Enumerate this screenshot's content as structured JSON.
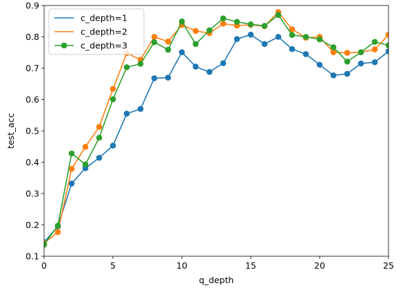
{
  "chart_data": {
    "type": "line",
    "title": "",
    "xlabel": "q_depth",
    "ylabel": "test_acc",
    "xlim": [
      0,
      25
    ],
    "ylim": [
      0.1,
      0.9
    ],
    "xticks": [
      0,
      5,
      10,
      15,
      20,
      25
    ],
    "yticks": [
      0.1,
      0.2,
      0.3,
      0.4,
      0.5,
      0.6,
      0.7,
      0.8,
      0.9
    ],
    "grid": false,
    "legend_position": "upper-left",
    "x": [
      0,
      1,
      2,
      3,
      4,
      5,
      6,
      7,
      8,
      9,
      10,
      11,
      12,
      13,
      14,
      15,
      16,
      17,
      18,
      19,
      20,
      21,
      22,
      23,
      24,
      25
    ],
    "series": [
      {
        "name": "c_depth=1",
        "color": "#1f77b4",
        "values": [
          0.145,
          0.195,
          0.332,
          0.381,
          0.414,
          0.453,
          0.555,
          0.57,
          0.668,
          0.67,
          0.751,
          0.705,
          0.688,
          0.716,
          0.793,
          0.807,
          0.777,
          0.8,
          0.761,
          0.745,
          0.711,
          0.677,
          0.682,
          0.715,
          0.719,
          0.754
        ]
      },
      {
        "name": "c_depth=2",
        "color": "#ff7f0e",
        "values": [
          0.142,
          0.177,
          0.379,
          0.449,
          0.513,
          0.634,
          0.748,
          0.727,
          0.8,
          0.785,
          0.838,
          0.819,
          0.812,
          0.842,
          0.836,
          0.838,
          0.834,
          0.879,
          0.824,
          0.797,
          0.8,
          0.751,
          0.749,
          0.751,
          0.76,
          0.807
        ]
      },
      {
        "name": "c_depth=3",
        "color": "#2ca02c",
        "values": [
          0.137,
          0.198,
          0.428,
          0.393,
          0.478,
          0.601,
          0.703,
          0.714,
          0.783,
          0.759,
          0.849,
          0.777,
          0.821,
          0.859,
          0.848,
          0.84,
          0.835,
          0.87,
          0.806,
          0.8,
          0.792,
          0.767,
          0.721,
          0.751,
          0.784,
          0.773
        ]
      }
    ]
  }
}
